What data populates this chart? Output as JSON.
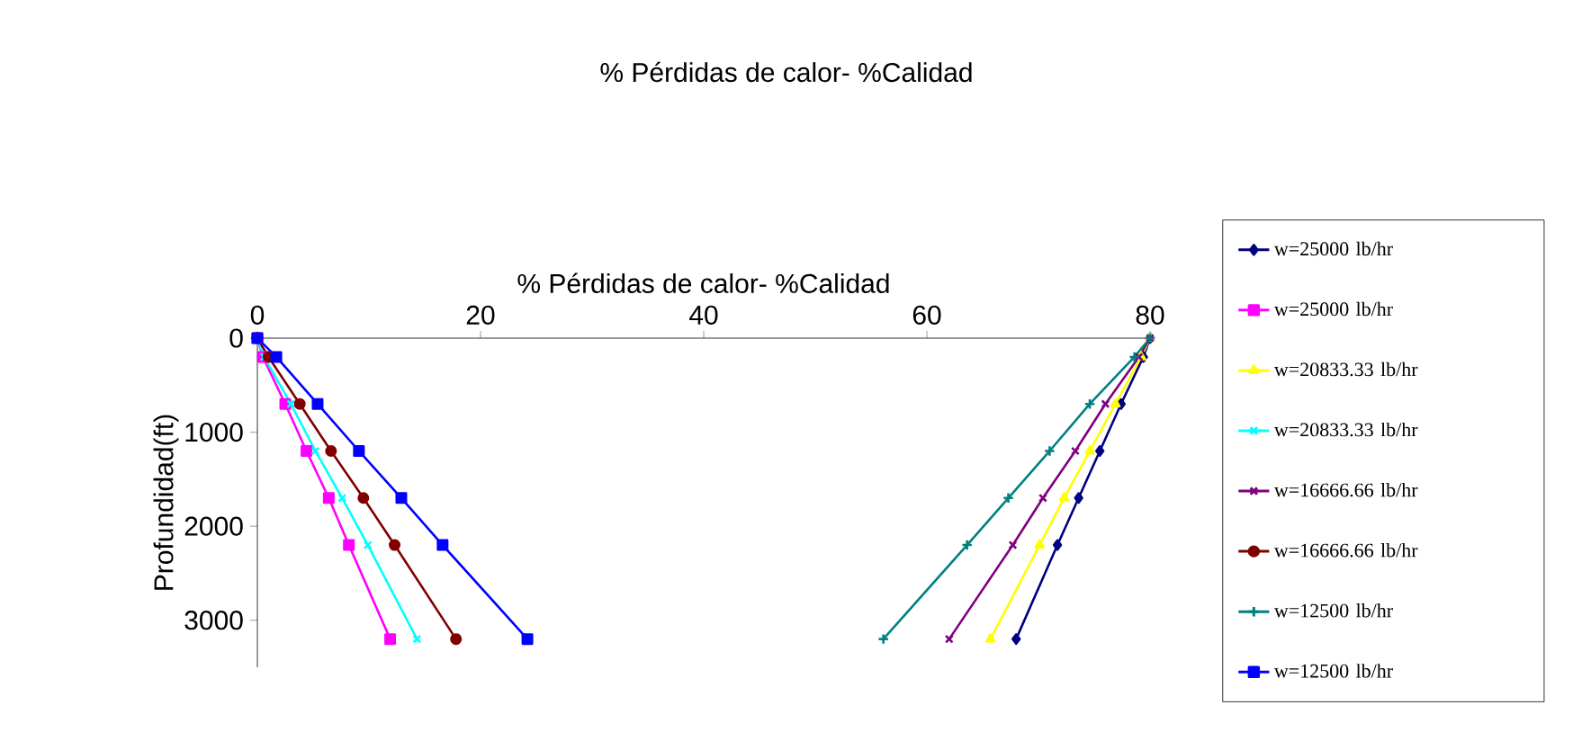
{
  "chart_data": {
    "type": "line",
    "title": "% Pérdidas de calor- %Calidad",
    "xlabel": "% Pérdidas de calor- %Calidad",
    "ylabel": "Profundidad(ft)",
    "xlim": [
      0,
      80
    ],
    "xticks": [
      0,
      20,
      40,
      60,
      80
    ],
    "ylim": [
      3500,
      0
    ],
    "yticks": [
      0,
      1000,
      2000,
      3000
    ],
    "grid": false,
    "legend": "right",
    "series": [
      {
        "name": "w=25000 lb/hr",
        "color": "#000080",
        "marker": "diamond",
        "x": [
          80,
          79.4,
          77.4,
          75.5,
          73.6,
          71.7,
          68.0
        ],
        "values": [
          0,
          200,
          700,
          1200,
          1700,
          2200,
          3200
        ]
      },
      {
        "name": "w=25000 lb/hr",
        "color": "#ff00ff",
        "marker": "square",
        "x": [
          0,
          0.5,
          2.5,
          4.4,
          6.4,
          8.2,
          11.9
        ],
        "values": [
          0,
          200,
          700,
          1200,
          1700,
          2200,
          3200
        ]
      },
      {
        "name": "w=20833.33 lb/hr",
        "color": "#ffff00",
        "marker": "triangle",
        "x": [
          80,
          79.2,
          76.9,
          74.6,
          72.3,
          70.1,
          65.7
        ],
        "values": [
          0,
          200,
          700,
          1200,
          1700,
          2200,
          3200
        ]
      },
      {
        "name": "w=20833.33 lb/hr",
        "color": "#00ffff",
        "marker": "cross",
        "x": [
          0,
          0.6,
          3.0,
          5.2,
          7.6,
          9.9,
          14.3
        ],
        "values": [
          0,
          200,
          700,
          1200,
          1700,
          2200,
          3200
        ]
      },
      {
        "name": "w=16666.66 lb/hr",
        "color": "#800080",
        "marker": "cross",
        "x": [
          80,
          79.0,
          76.0,
          73.3,
          70.4,
          67.7,
          62.0
        ],
        "values": [
          0,
          200,
          700,
          1200,
          1700,
          2200,
          3200
        ]
      },
      {
        "name": "w=16666.66 lb/hr",
        "color": "#800000",
        "marker": "circle",
        "x": [
          0,
          1.0,
          3.8,
          6.6,
          9.5,
          12.3,
          17.8
        ],
        "values": [
          0,
          200,
          700,
          1200,
          1700,
          2200,
          3200
        ]
      },
      {
        "name": "w=12500 lb/hr",
        "color": "#008080",
        "marker": "plus",
        "x": [
          80,
          78.6,
          74.6,
          71.0,
          67.3,
          63.6,
          56.1
        ],
        "values": [
          0,
          200,
          700,
          1200,
          1700,
          2200,
          3200
        ]
      },
      {
        "name": "w=12500 lb/hr",
        "color": "#0000ff",
        "marker": "square",
        "x": [
          0,
          1.7,
          5.4,
          9.1,
          12.9,
          16.6,
          24.2
        ],
        "values": [
          0,
          200,
          700,
          1200,
          1700,
          2200,
          3200
        ]
      }
    ]
  }
}
